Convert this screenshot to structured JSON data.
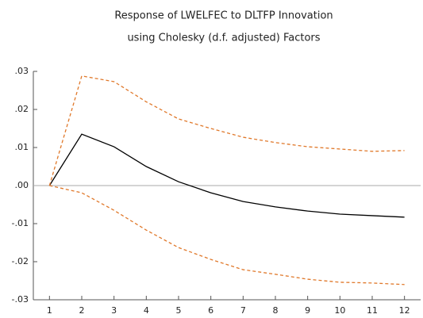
{
  "chart_data": {
    "type": "line",
    "title": [
      "Response of LWELFEC to DLTFP Innovation",
      "using Cholesky (d.f. adjusted) Factors"
    ],
    "categories": [
      "1",
      "2",
      "3",
      "4",
      "5",
      "6",
      "7",
      "8",
      "9",
      "10",
      "11",
      "12"
    ],
    "series": [
      {
        "color": "#000000",
        "dashed": false,
        "values": [
          0,
          0.0135,
          0.0102,
          0.005,
          0.001,
          -0.0019,
          -0.0042,
          -0.0056,
          -0.0067,
          -0.0075,
          -0.0079,
          -0.0083
        ]
      },
      {
        "color": "#e0782a",
        "dashed": true,
        "values": [
          0,
          0.0288,
          0.0273,
          0.022,
          0.0175,
          0.015,
          0.0127,
          0.0113,
          0.0102,
          0.0096,
          0.009,
          0.0092
        ]
      },
      {
        "color": "#e0782a",
        "dashed": true,
        "values": [
          0,
          -0.0019,
          -0.0065,
          -0.0117,
          -0.0163,
          -0.0194,
          -0.0221,
          -0.0233,
          -0.0246,
          -0.0254,
          -0.0256,
          -0.026
        ]
      }
    ],
    "ylim": [
      -0.03,
      0.03
    ],
    "yticks": [
      {
        "value": 0.03,
        "label": ".03"
      },
      {
        "value": 0.02,
        "label": ".02"
      },
      {
        "value": 0.01,
        "label": ".01"
      },
      {
        "value": 0,
        "label": ".00"
      },
      {
        "value": -0.01,
        "label": "-.01"
      },
      {
        "value": -0.02,
        "label": "-.02"
      },
      {
        "value": -0.03,
        "label": "-.03"
      }
    ],
    "zero_line": true
  }
}
